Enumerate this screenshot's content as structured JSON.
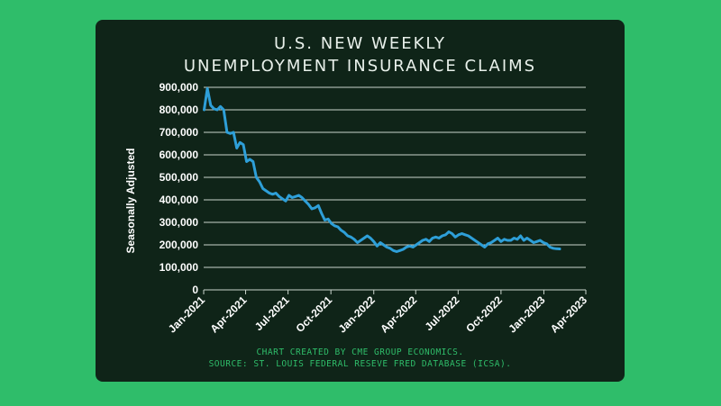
{
  "chart_data": {
    "type": "line",
    "title": [
      "U.S. NEW WEEKLY",
      "UNEMPLOYMENT INSURANCE CLAIMS"
    ],
    "ylabel": "Seasonally Adjusted",
    "xlabel": "",
    "ylim": [
      0,
      900000
    ],
    "yticks": [
      {
        "value": 0,
        "label": "0"
      },
      {
        "value": 100000,
        "label": "100,000"
      },
      {
        "value": 200000,
        "label": "200,000"
      },
      {
        "value": 300000,
        "label": "300,000"
      },
      {
        "value": 400000,
        "label": "400,000"
      },
      {
        "value": 500000,
        "label": "500,000"
      },
      {
        "value": 600000,
        "label": "600,000"
      },
      {
        "value": 700000,
        "label": "700,000"
      },
      {
        "value": 800000,
        "label": "800,000"
      },
      {
        "value": 900000,
        "label": "900,000"
      }
    ],
    "xlim": [
      "2021-01-01",
      "2023-04-01"
    ],
    "xticks": [
      {
        "value": "2021-01-01",
        "label": "Jan-2021"
      },
      {
        "value": "2021-04-01",
        "label": "Apr-2021"
      },
      {
        "value": "2021-07-01",
        "label": "Jul-2021"
      },
      {
        "value": "2021-10-01",
        "label": "Oct-2021"
      },
      {
        "value": "2022-01-01",
        "label": "Jan-2022"
      },
      {
        "value": "2022-04-01",
        "label": "Apr-2022"
      },
      {
        "value": "2022-07-01",
        "label": "Jul-2022"
      },
      {
        "value": "2022-10-01",
        "label": "Oct-2022"
      },
      {
        "value": "2023-01-01",
        "label": "Jan-2023"
      },
      {
        "value": "2023-04-01",
        "label": "Apr-2023"
      }
    ],
    "grid": true,
    "line_color": "#2e9fd8",
    "series": [
      {
        "x": [
          "2021-01-02",
          "2021-01-09",
          "2021-01-16",
          "2021-01-23",
          "2021-01-30",
          "2021-02-06",
          "2021-02-13",
          "2021-02-20",
          "2021-02-27",
          "2021-03-06",
          "2021-03-13",
          "2021-03-20",
          "2021-03-27",
          "2021-04-03",
          "2021-04-10",
          "2021-04-17",
          "2021-04-24",
          "2021-05-01",
          "2021-05-08",
          "2021-05-15",
          "2021-05-22",
          "2021-05-29",
          "2021-06-05",
          "2021-06-12",
          "2021-06-19",
          "2021-06-26",
          "2021-07-03",
          "2021-07-10",
          "2021-07-17",
          "2021-07-24",
          "2021-07-31",
          "2021-08-07",
          "2021-08-14",
          "2021-08-21",
          "2021-08-28",
          "2021-09-04",
          "2021-09-11",
          "2021-09-18",
          "2021-09-25",
          "2021-10-02",
          "2021-10-09",
          "2021-10-16",
          "2021-10-23",
          "2021-10-30",
          "2021-11-06",
          "2021-11-13",
          "2021-11-20",
          "2021-11-27",
          "2021-12-04",
          "2021-12-11",
          "2021-12-18",
          "2021-12-25",
          "2022-01-01",
          "2022-01-08",
          "2022-01-15",
          "2022-01-22",
          "2022-01-29",
          "2022-02-05",
          "2022-02-12",
          "2022-02-19",
          "2022-02-26",
          "2022-03-05",
          "2022-03-12",
          "2022-03-19",
          "2022-03-26",
          "2022-04-02",
          "2022-04-09",
          "2022-04-16",
          "2022-04-23",
          "2022-04-30",
          "2022-05-07",
          "2022-05-14",
          "2022-05-21",
          "2022-05-28",
          "2022-06-04",
          "2022-06-11",
          "2022-06-18",
          "2022-06-25",
          "2022-07-02",
          "2022-07-09",
          "2022-07-16",
          "2022-07-23",
          "2022-07-30",
          "2022-08-06",
          "2022-08-13",
          "2022-08-20",
          "2022-08-27",
          "2022-09-03",
          "2022-09-10",
          "2022-09-17",
          "2022-09-24",
          "2022-10-01",
          "2022-10-08",
          "2022-10-15",
          "2022-10-22",
          "2022-10-29",
          "2022-11-05",
          "2022-11-12",
          "2022-11-19",
          "2022-11-26",
          "2022-12-03",
          "2022-12-10",
          "2022-12-17",
          "2022-12-24",
          "2022-12-31",
          "2023-01-07",
          "2023-01-14",
          "2023-01-21",
          "2023-01-28",
          "2023-02-04"
        ],
        "values": [
          800000,
          895000,
          820000,
          805000,
          800000,
          815000,
          800000,
          700000,
          695000,
          700000,
          630000,
          655000,
          645000,
          570000,
          580000,
          570000,
          500000,
          480000,
          450000,
          440000,
          430000,
          425000,
          430000,
          415000,
          405000,
          395000,
          420000,
          410000,
          415000,
          420000,
          410000,
          395000,
          380000,
          360000,
          365000,
          375000,
          340000,
          310000,
          315000,
          295000,
          285000,
          280000,
          265000,
          255000,
          240000,
          235000,
          225000,
          210000,
          220000,
          230000,
          240000,
          230000,
          215000,
          195000,
          210000,
          200000,
          190000,
          185000,
          175000,
          170000,
          175000,
          180000,
          190000,
          195000,
          190000,
          200000,
          210000,
          220000,
          225000,
          215000,
          230000,
          235000,
          230000,
          240000,
          245000,
          258000,
          250000,
          235000,
          245000,
          250000,
          245000,
          240000,
          230000,
          220000,
          210000,
          200000,
          190000,
          205000,
          210000,
          220000,
          230000,
          215000,
          225000,
          220000,
          220000,
          230000,
          225000,
          240000,
          220000,
          230000,
          220000,
          210000,
          215000,
          220000,
          210000,
          205000,
          190000,
          185000,
          183000,
          182000
        ]
      }
    ]
  },
  "footer": {
    "line1": "CHART CREATED BY CME GROUP ECONOMICS.",
    "line2": "SOURCE: ST. LOUIS FEDERAL RESEVE FRED DATABASE (ICSA)."
  }
}
